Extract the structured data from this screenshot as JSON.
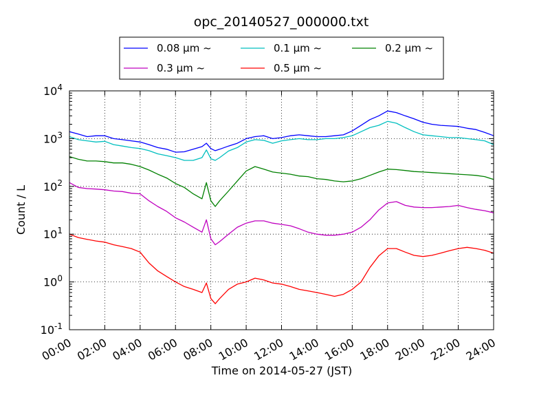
{
  "chart_data": {
    "type": "line",
    "title": "opc_20140527_000000.txt",
    "xlabel": "Time on 2014-05-27 (JST)",
    "ylabel": "Count / L",
    "x_unit": "hours",
    "xlim": [
      0,
      24
    ],
    "ylim": [
      0.1,
      10000
    ],
    "yscale": "log",
    "grid": true,
    "legend_position": "top",
    "x_ticks": [
      "00:00",
      "02:00",
      "04:00",
      "06:00",
      "08:00",
      "10:00",
      "12:00",
      "14:00",
      "16:00",
      "18:00",
      "20:00",
      "22:00",
      "24:00"
    ],
    "y_ticks": [
      {
        "base": "10",
        "exp": "-1",
        "value": 0.1
      },
      {
        "base": "10",
        "exp": "0",
        "value": 1
      },
      {
        "base": "10",
        "exp": "1",
        "value": 10
      },
      {
        "base": "10",
        "exp": "2",
        "value": 100
      },
      {
        "base": "10",
        "exp": "3",
        "value": 1000
      },
      {
        "base": "10",
        "exp": "4",
        "value": 10000
      }
    ],
    "x": [
      0,
      0.5,
      1,
      1.5,
      2,
      2.5,
      3,
      3.5,
      4,
      4.5,
      5,
      5.5,
      6,
      6.5,
      7,
      7.5,
      7.75,
      8,
      8.25,
      8.5,
      9,
      9.5,
      10,
      10.5,
      11,
      11.5,
      12,
      12.5,
      13,
      13.5,
      14,
      14.5,
      15,
      15.5,
      16,
      16.5,
      17,
      17.5,
      18,
      18.5,
      19,
      19.5,
      20,
      20.5,
      21,
      21.5,
      22,
      22.5,
      23,
      23.5,
      24
    ],
    "series": [
      {
        "name": "0.08 μm ~",
        "color": "#0000ff",
        "values": [
          1400,
          1250,
          1100,
          1150,
          1150,
          1000,
          950,
          900,
          850,
          750,
          650,
          600,
          520,
          530,
          600,
          680,
          800,
          620,
          560,
          600,
          700,
          800,
          1000,
          1100,
          1150,
          1000,
          1050,
          1150,
          1200,
          1150,
          1100,
          1100,
          1150,
          1200,
          1450,
          1900,
          2500,
          3000,
          3800,
          3500,
          3000,
          2600,
          2200,
          2000,
          1900,
          1850,
          1800,
          1650,
          1550,
          1350,
          1150
        ]
      },
      {
        "name": "0.1 μm ~",
        "color": "#00bfbf",
        "values": [
          1100,
          950,
          900,
          850,
          880,
          750,
          700,
          650,
          620,
          560,
          480,
          440,
          400,
          350,
          350,
          400,
          580,
          380,
          350,
          400,
          550,
          650,
          850,
          950,
          920,
          800,
          900,
          950,
          1000,
          950,
          950,
          1000,
          1000,
          1050,
          1150,
          1400,
          1700,
          1900,
          2300,
          2100,
          1700,
          1400,
          1200,
          1150,
          1100,
          1050,
          1050,
          1000,
          950,
          900,
          750
        ]
      },
      {
        "name": "0.2 μm ~",
        "color": "#008000",
        "values": [
          420,
          370,
          340,
          340,
          330,
          310,
          310,
          290,
          260,
          220,
          180,
          150,
          115,
          95,
          70,
          55,
          120,
          50,
          38,
          50,
          80,
          130,
          210,
          260,
          230,
          200,
          190,
          180,
          165,
          160,
          145,
          140,
          130,
          125,
          130,
          145,
          170,
          200,
          230,
          225,
          215,
          205,
          200,
          195,
          190,
          185,
          180,
          175,
          170,
          160,
          140
        ]
      },
      {
        "name": "0.3 μm ~",
        "color": "#bf00bf",
        "values": [
          120,
          95,
          90,
          88,
          85,
          80,
          78,
          72,
          70,
          50,
          38,
          30,
          22,
          18,
          14,
          11,
          20,
          8,
          6,
          7,
          10,
          14,
          17,
          19,
          19,
          17,
          16,
          15,
          13,
          11,
          10,
          9.5,
          9.5,
          10,
          11,
          14,
          20,
          32,
          45,
          48,
          40,
          37,
          36,
          36,
          37,
          38,
          40,
          36,
          33,
          31,
          28
        ]
      },
      {
        "name": "0.5 μm ~",
        "color": "#ff0000",
        "values": [
          10,
          8.5,
          7.8,
          7.2,
          6.8,
          6.0,
          5.5,
          5.0,
          4.2,
          2.5,
          1.7,
          1.3,
          1.0,
          0.8,
          0.7,
          0.6,
          0.95,
          0.45,
          0.35,
          0.45,
          0.7,
          0.9,
          1.0,
          1.2,
          1.1,
          0.95,
          0.9,
          0.8,
          0.7,
          0.65,
          0.6,
          0.55,
          0.5,
          0.55,
          0.7,
          1.0,
          2.0,
          3.5,
          5.0,
          5.0,
          4.2,
          3.6,
          3.4,
          3.6,
          4.0,
          4.5,
          5.0,
          5.3,
          5.0,
          4.6,
          4.0
        ]
      }
    ]
  }
}
